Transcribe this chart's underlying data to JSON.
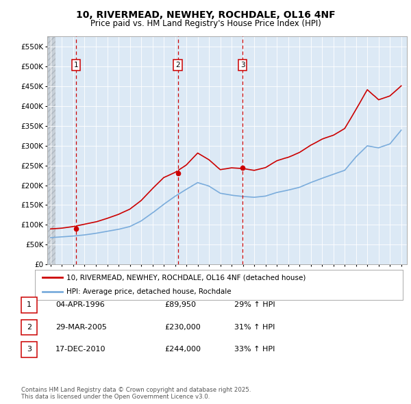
{
  "title_line1": "10, RIVERMEAD, NEWHEY, ROCHDALE, OL16 4NF",
  "title_line2": "Price paid vs. HM Land Registry's House Price Index (HPI)",
  "ylim": [
    0,
    575000
  ],
  "yticks": [
    0,
    50000,
    100000,
    150000,
    200000,
    250000,
    300000,
    350000,
    400000,
    450000,
    500000,
    550000
  ],
  "ytick_labels": [
    "£0",
    "£50K",
    "£100K",
    "£150K",
    "£200K",
    "£250K",
    "£300K",
    "£350K",
    "£400K",
    "£450K",
    "£500K",
    "£550K"
  ],
  "xlim_start": 1993.7,
  "xlim_end": 2025.5,
  "background_color": "#ffffff",
  "plot_bg_color": "#dce9f5",
  "grid_color": "#ffffff",
  "red_line_color": "#cc0000",
  "blue_line_color": "#7aacdc",
  "transaction_dates": [
    1996.26,
    2005.24,
    2010.97
  ],
  "transaction_prices": [
    89950,
    230000,
    244000
  ],
  "transaction_labels": [
    "1",
    "2",
    "3"
  ],
  "legend_line1": "10, RIVERMEAD, NEWHEY, ROCHDALE, OL16 4NF (detached house)",
  "legend_line2": "HPI: Average price, detached house, Rochdale",
  "table_rows": [
    [
      "1",
      "04-APR-1996",
      "£89,950",
      "29% ↑ HPI"
    ],
    [
      "2",
      "29-MAR-2005",
      "£230,000",
      "31% ↑ HPI"
    ],
    [
      "3",
      "17-DEC-2010",
      "£244,000",
      "33% ↑ HPI"
    ]
  ],
  "footer_text": "Contains HM Land Registry data © Crown copyright and database right 2025.\nThis data is licensed under the Open Government Licence v3.0."
}
